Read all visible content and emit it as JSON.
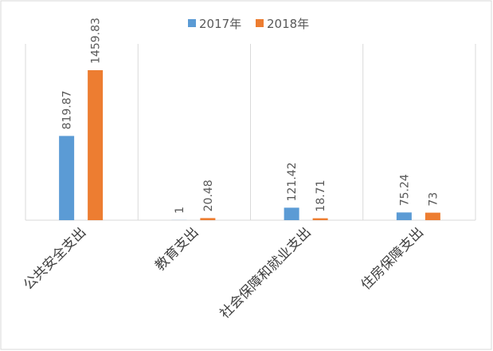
{
  "chart_data": {
    "type": "bar",
    "categories": [
      "公共安全支出",
      "教育支出",
      "社会保障和就业支出",
      "住房保障支出"
    ],
    "series": [
      {
        "name": "2017年",
        "color": "#5b9bd5",
        "values": [
          819.87,
          1,
          121.42,
          75.24
        ]
      },
      {
        "name": "2018年",
        "color": "#ed7d31",
        "values": [
          1459.83,
          20.48,
          18.71,
          73
        ]
      }
    ],
    "legend": "top"
  }
}
